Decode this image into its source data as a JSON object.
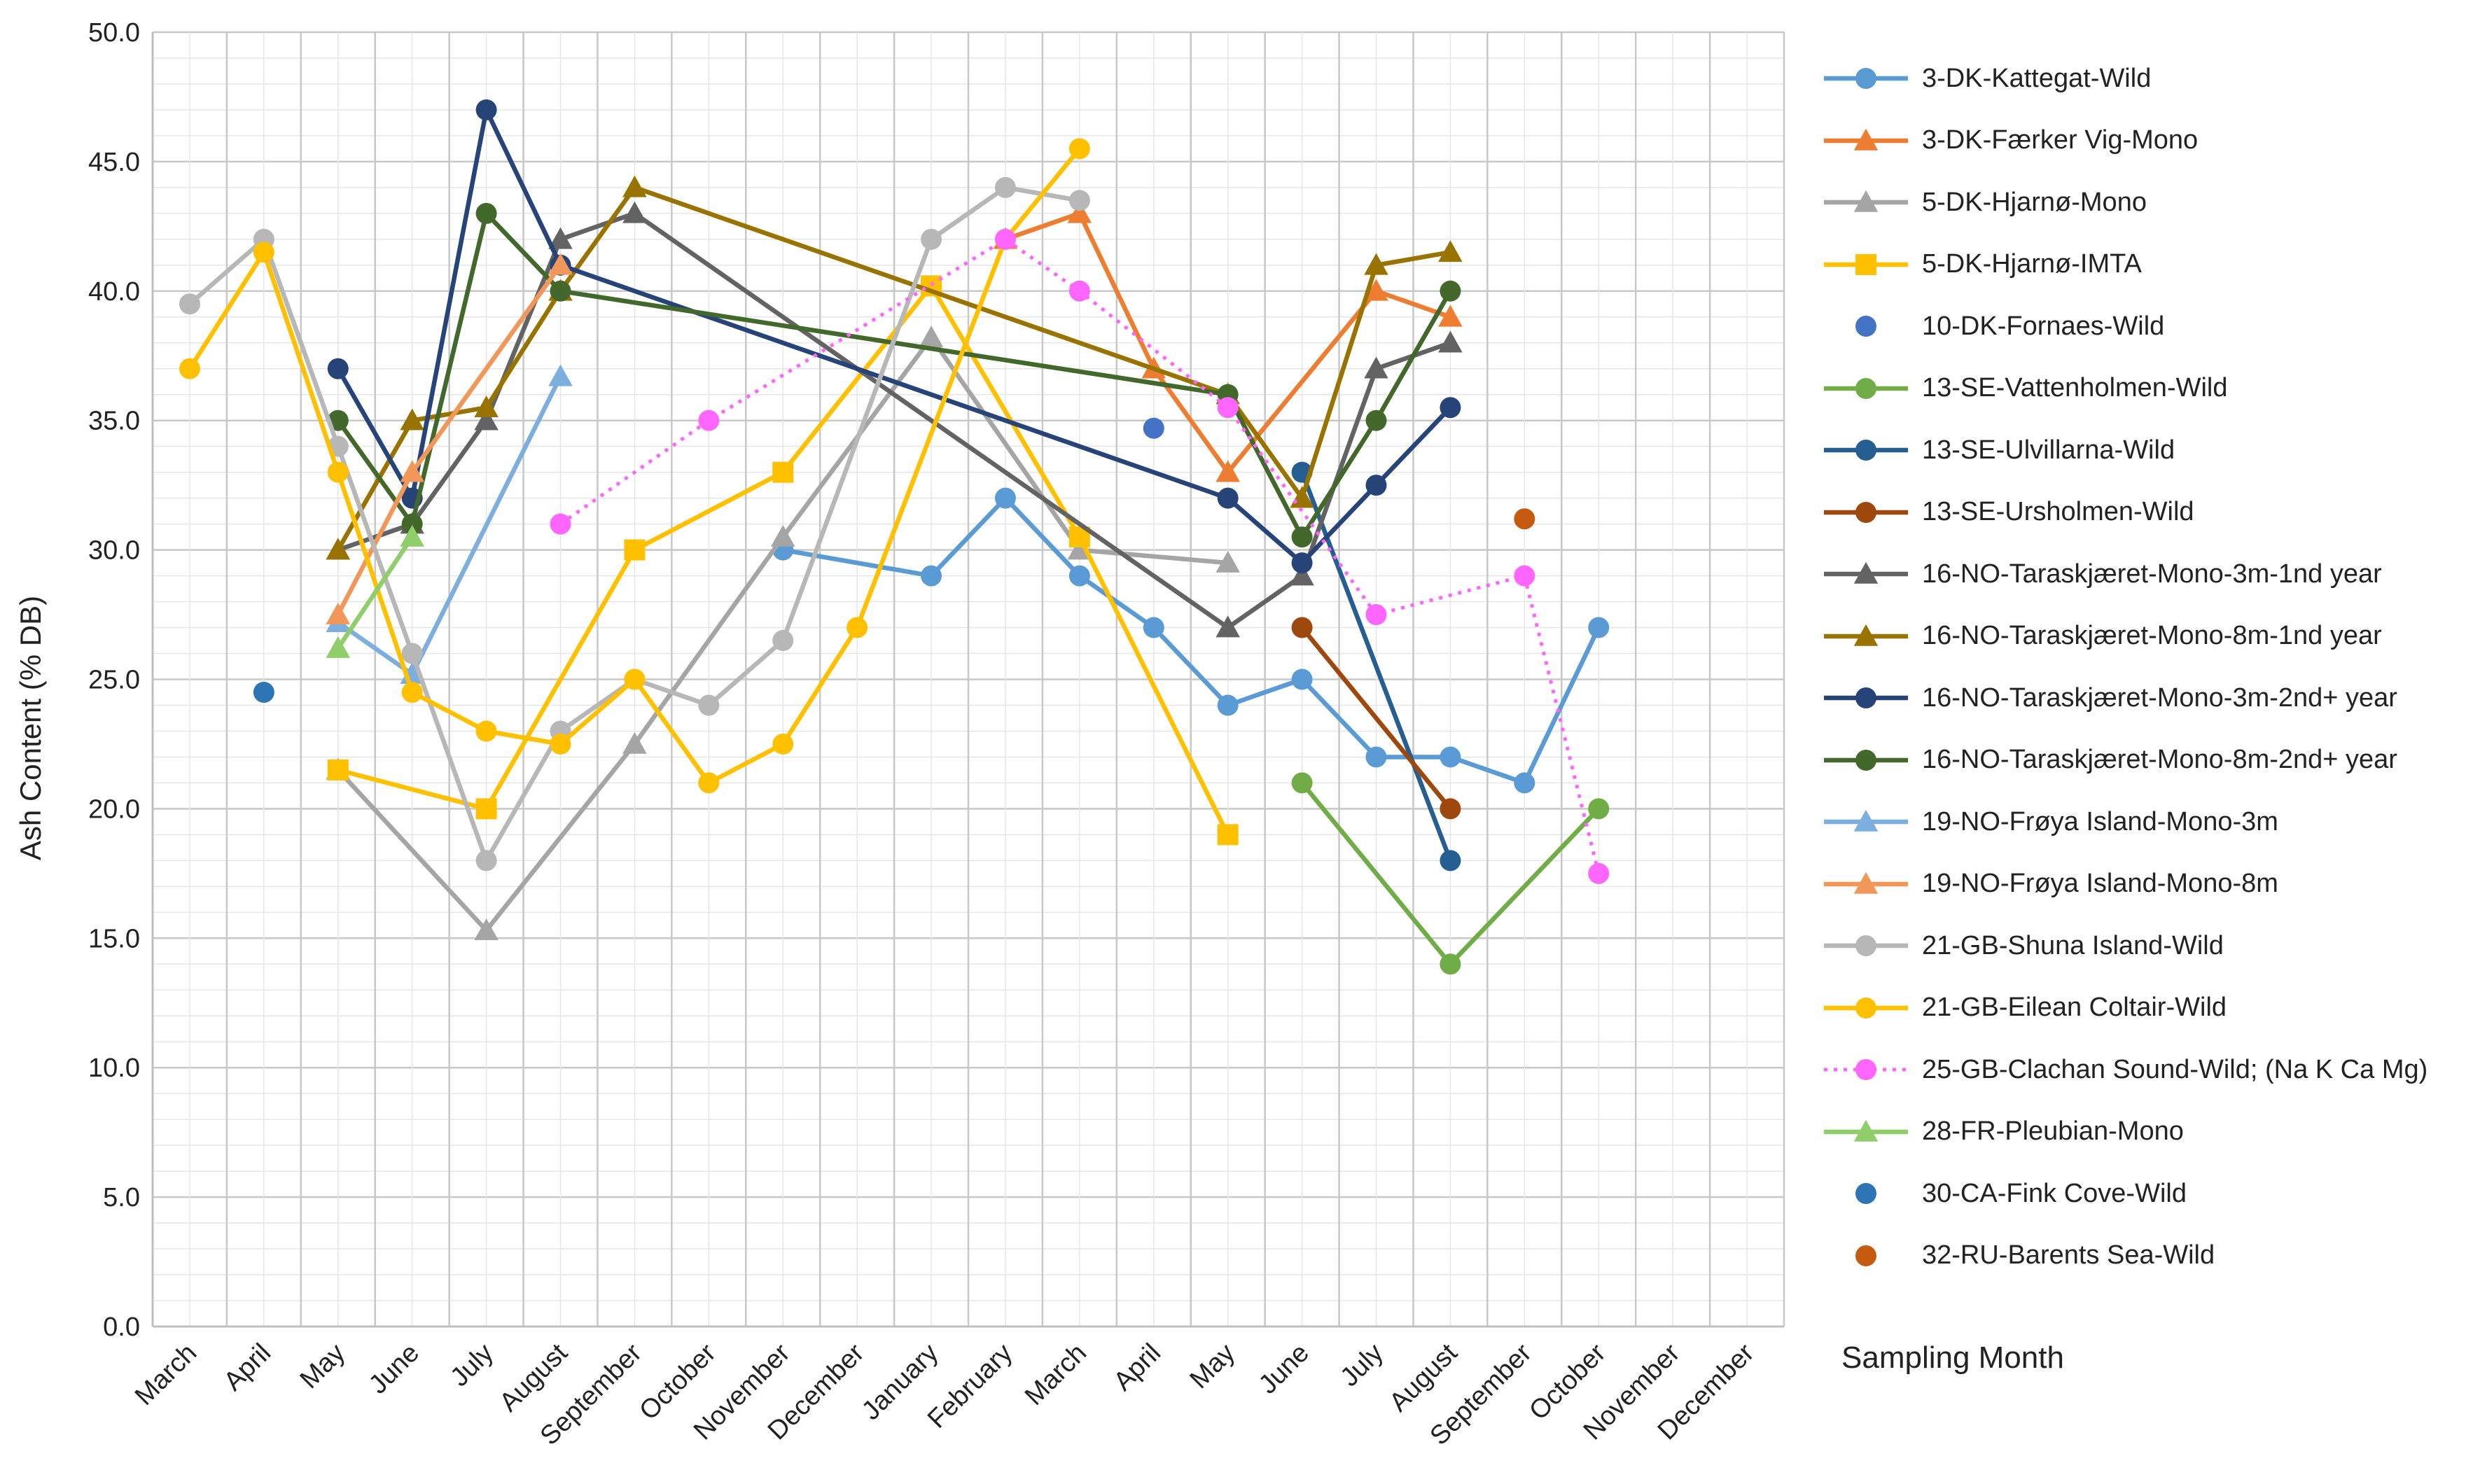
{
  "chart_data": {
    "type": "line",
    "title": "",
    "xlabel": "Sampling Month",
    "ylabel": "Ash Content (% DB)",
    "ylim": [
      0,
      50
    ],
    "yticks": [
      "0.0",
      "5.0",
      "10.0",
      "15.0",
      "20.0",
      "25.0",
      "30.0",
      "35.0",
      "40.0",
      "45.0",
      "50.0"
    ],
    "categories": [
      "March",
      "April",
      "May",
      "June",
      "July",
      "August",
      "September",
      "October",
      "November",
      "December",
      "January",
      "February",
      "March",
      "April",
      "May",
      "June",
      "July",
      "August",
      "September",
      "October",
      "November",
      "December"
    ],
    "grid": true,
    "legend_position": "right",
    "series": [
      {
        "name": "3-DK-Kattegat-Wild",
        "color": "#5b9bd5",
        "marker": "circle",
        "dash": false,
        "points": [
          [
            8,
            30
          ],
          [
            10,
            29
          ],
          [
            11,
            32
          ],
          [
            12,
            29
          ],
          [
            13,
            27
          ],
          [
            14,
            24
          ],
          [
            15,
            25
          ],
          [
            16,
            22
          ],
          [
            17,
            22
          ],
          [
            18,
            21
          ],
          [
            19,
            27
          ]
        ]
      },
      {
        "name": "3-DK-Færker Vig-Mono",
        "color": "#ed7d31",
        "marker": "triangle",
        "dash": false,
        "points": [
          [
            11,
            42
          ],
          [
            12,
            43
          ],
          [
            13,
            37
          ],
          [
            14,
            33
          ],
          [
            16,
            40
          ],
          [
            17,
            39
          ]
        ]
      },
      {
        "name": "5-DK-Hjarnø-Mono",
        "color": "#a5a5a5",
        "marker": "triangle",
        "dash": false,
        "points": [
          [
            2,
            21.5
          ],
          [
            4,
            15.3
          ],
          [
            6,
            22.5
          ],
          [
            8,
            30.5
          ],
          [
            10,
            38.2
          ],
          [
            12,
            30
          ],
          [
            14,
            29.5
          ]
        ]
      },
      {
        "name": "5-DK-Hjarnø-IMTA",
        "color": "#ffc000",
        "marker": "square",
        "dash": false,
        "points": [
          [
            2,
            21.5
          ],
          [
            4,
            20
          ],
          [
            6,
            30
          ],
          [
            8,
            33
          ],
          [
            10,
            40.2
          ],
          [
            12,
            30.5
          ],
          [
            14,
            19
          ]
        ]
      },
      {
        "name": "10-DK-Fornaes-Wild",
        "color": "#4472c4",
        "marker": "circle",
        "dash": false,
        "points": [
          [
            13,
            34.7
          ]
        ]
      },
      {
        "name": "13-SE-Vattenholmen-Wild",
        "color": "#70ad47",
        "marker": "circle",
        "dash": false,
        "points": [
          [
            15,
            21
          ],
          [
            17,
            14
          ],
          [
            19,
            20
          ]
        ]
      },
      {
        "name": "13-SE-Ulvillarna-Wild",
        "color": "#255e91",
        "marker": "circle",
        "dash": false,
        "points": [
          [
            15,
            33
          ],
          [
            17,
            18
          ]
        ]
      },
      {
        "name": "13-SE-Ursholmen-Wild",
        "color": "#9e480e",
        "marker": "circle",
        "dash": false,
        "points": [
          [
            15,
            27
          ],
          [
            17,
            20
          ]
        ]
      },
      {
        "name": "16-NO-Taraskjæret-Mono-3m-1nd year",
        "color": "#636363",
        "marker": "triangle",
        "dash": false,
        "points": [
          [
            2,
            30
          ],
          [
            3,
            31
          ],
          [
            4,
            35
          ],
          [
            5,
            42
          ],
          [
            6,
            43
          ],
          [
            14,
            27
          ],
          [
            15,
            29
          ],
          [
            16,
            37
          ],
          [
            17,
            38
          ]
        ]
      },
      {
        "name": "16-NO-Taraskjæret-Mono-8m-1nd year",
        "color": "#997300",
        "marker": "triangle",
        "dash": false,
        "points": [
          [
            2,
            30
          ],
          [
            3,
            35
          ],
          [
            4,
            35.5
          ],
          [
            5,
            40
          ],
          [
            6,
            44
          ],
          [
            14,
            36
          ],
          [
            15,
            32
          ],
          [
            16,
            41
          ],
          [
            17,
            41.5
          ]
        ]
      },
      {
        "name": "16-NO-Taraskjæret-Mono-3m-2nd+ year",
        "color": "#264478",
        "marker": "circle",
        "dash": false,
        "points": [
          [
            2,
            37
          ],
          [
            3,
            32
          ],
          [
            4,
            47
          ],
          [
            5,
            41
          ],
          [
            14,
            32
          ],
          [
            15,
            29.5
          ],
          [
            16,
            32.5
          ],
          [
            17,
            35.5
          ]
        ]
      },
      {
        "name": "16-NO-Taraskjæret-Mono-8m-2nd+ year",
        "color": "#43682b",
        "marker": "circle",
        "dash": false,
        "points": [
          [
            2,
            35
          ],
          [
            3,
            31
          ],
          [
            4,
            43
          ],
          [
            5,
            40
          ],
          [
            14,
            36
          ],
          [
            15,
            30.5
          ],
          [
            16,
            35
          ],
          [
            17,
            40
          ]
        ]
      },
      {
        "name": "19-NO-Frøya Island-Mono-3m",
        "color": "#7cafdd",
        "marker": "triangle",
        "dash": false,
        "points": [
          [
            2,
            27.2
          ],
          [
            3,
            25.2
          ],
          [
            5,
            36.7
          ]
        ]
      },
      {
        "name": "19-NO-Frøya Island-Mono-8m",
        "color": "#f1975a",
        "marker": "triangle",
        "dash": false,
        "points": [
          [
            2,
            27.5
          ],
          [
            3,
            33
          ],
          [
            5,
            41
          ]
        ]
      },
      {
        "name": "21-GB-Shuna Island-Wild",
        "color": "#b7b7b7",
        "marker": "circle",
        "dash": false,
        "points": [
          [
            0,
            39.5
          ],
          [
            1,
            42
          ],
          [
            2,
            34
          ],
          [
            3,
            26
          ],
          [
            4,
            18
          ],
          [
            5,
            23
          ],
          [
            6,
            25
          ],
          [
            7,
            24
          ],
          [
            8,
            26.5
          ],
          [
            10,
            42
          ],
          [
            11,
            44
          ],
          [
            12,
            43.5
          ]
        ]
      },
      {
        "name": "21-GB-Eilean Coltair-Wild",
        "color": "#ffc000",
        "marker": "circle",
        "dash": false,
        "points": [
          [
            0,
            37
          ],
          [
            1,
            41.5
          ],
          [
            2,
            33
          ],
          [
            3,
            24.5
          ],
          [
            4,
            23
          ],
          [
            5,
            22.5
          ],
          [
            6,
            25
          ],
          [
            7,
            21
          ],
          [
            8,
            22.5
          ],
          [
            9,
            27
          ],
          [
            11,
            42
          ],
          [
            12,
            45.5
          ]
        ]
      },
      {
        "name": "25-GB-Clachan Sound-Wild; (Na K Ca Mg)",
        "color": "#ff66ff",
        "marker": "circle",
        "dash": true,
        "points": [
          [
            5,
            31
          ],
          [
            7,
            35
          ],
          [
            11,
            42
          ],
          [
            12,
            40
          ],
          [
            14,
            35.5
          ],
          [
            16,
            27.5
          ],
          [
            18,
            29
          ],
          [
            19,
            17.5
          ]
        ]
      },
      {
        "name": "28-FR-Pleubian-Mono",
        "color": "#8fce6a",
        "marker": "triangle",
        "dash": false,
        "points": [
          [
            2,
            26.2
          ],
          [
            3,
            30.5
          ]
        ]
      },
      {
        "name": "30-CA-Fink Cove-Wild",
        "color": "#2e75b6",
        "marker": "circle",
        "dash": false,
        "points": [
          [
            1,
            24.5
          ]
        ]
      },
      {
        "name": "32-RU-Barents Sea-Wild",
        "color": "#c55a11",
        "marker": "circle",
        "dash": false,
        "points": [
          [
            18,
            31.2
          ]
        ]
      }
    ]
  }
}
